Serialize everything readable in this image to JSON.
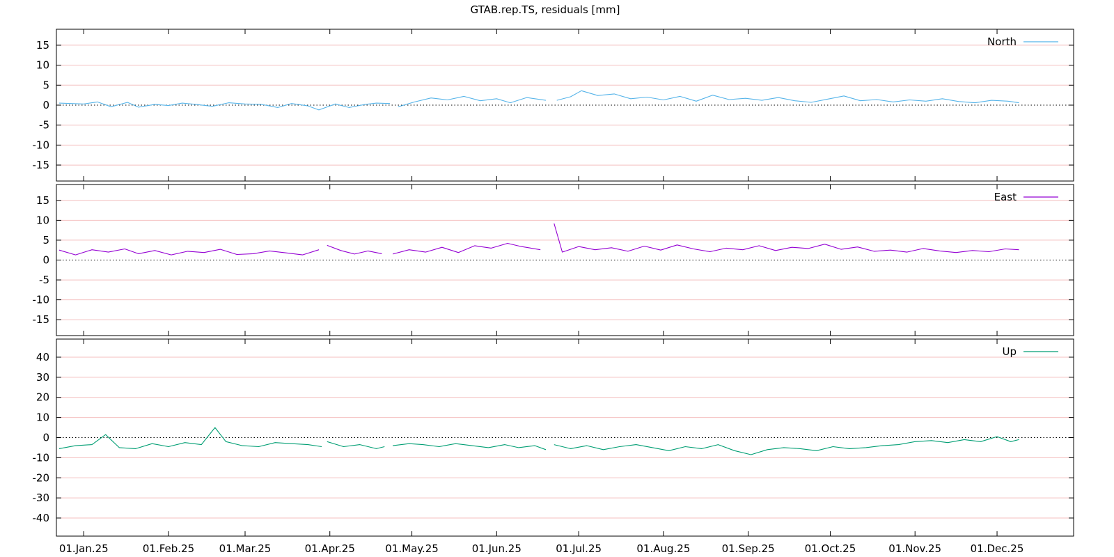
{
  "chart_data": {
    "type": "line",
    "title": "GTAB.rep.TS, residuals [mm]",
    "x_tick_labels": [
      "01.Jan.25",
      "01.Feb.25",
      "01.Mar.25",
      "01.Apr.25",
      "01.May.25",
      "01.Jun.25",
      "01.Jul.25",
      "01.Aug.25",
      "01.Sep.25",
      "01.Oct.25",
      "01.Nov.25",
      "01.Dec.25"
    ],
    "x_ticks": [
      "2025-01-01",
      "2025-02-01",
      "2025-03-01",
      "2025-04-01",
      "2025-05-01",
      "2025-06-01",
      "2025-07-01",
      "2025-08-01",
      "2025-09-01",
      "2025-10-01",
      "2025-11-01",
      "2025-12-01"
    ],
    "xlim": [
      "2024-12-22",
      "2025-12-29"
    ],
    "grid": true,
    "legend_position": "top-right",
    "panels": [
      {
        "name": "North",
        "color": "#56b4e9",
        "ylim": [
          -19,
          19
        ],
        "yticks": [
          -15,
          -10,
          -5,
          0,
          5,
          10,
          15
        ],
        "y_tick_labels": [
          "-15",
          "-10",
          "-5",
          "0",
          "5",
          "10",
          "15"
        ],
        "segments": [
          {
            "x": [
              "2024-12-23",
              "2025-01-01",
              "2025-01-06",
              "2025-01-11",
              "2025-01-17",
              "2025-01-21",
              "2025-01-27",
              "2025-02-01",
              "2025-02-06",
              "2025-02-11",
              "2025-02-17",
              "2025-02-23",
              "2025-03-01",
              "2025-03-07",
              "2025-03-13",
              "2025-03-18",
              "2025-03-24",
              "2025-03-28",
              "2025-04-03",
              "2025-04-08",
              "2025-04-14",
              "2025-04-18",
              "2025-04-23"
            ],
            "y": [
              0.5,
              0.3,
              0.8,
              -0.4,
              0.7,
              -0.5,
              0.2,
              -0.1,
              0.5,
              0.2,
              -0.3,
              0.6,
              0.3,
              0.2,
              -0.6,
              0.4,
              -0.2,
              -1.2,
              0.3,
              -0.6,
              0.2,
              0.5,
              0.4
            ]
          },
          {
            "x": [
              "2025-04-26",
              "2025-05-02",
              "2025-05-08",
              "2025-05-14",
              "2025-05-20",
              "2025-05-26",
              "2025-06-01",
              "2025-06-06",
              "2025-06-12",
              "2025-06-19"
            ],
            "y": [
              -0.4,
              0.8,
              1.8,
              1.3,
              2.2,
              1.1,
              1.6,
              0.6,
              1.9,
              1.2
            ]
          },
          {
            "x": [
              "2025-06-23",
              "2025-06-28",
              "2025-07-02",
              "2025-07-08",
              "2025-07-14",
              "2025-07-20",
              "2025-07-26",
              "2025-08-01",
              "2025-08-07",
              "2025-08-13",
              "2025-08-19",
              "2025-08-25",
              "2025-08-31",
              "2025-09-06",
              "2025-09-12",
              "2025-09-18",
              "2025-09-24",
              "2025-09-30",
              "2025-10-06",
              "2025-10-12",
              "2025-10-18",
              "2025-10-24",
              "2025-10-30",
              "2025-11-05",
              "2025-11-11",
              "2025-11-17",
              "2025-11-23",
              "2025-11-29",
              "2025-12-05",
              "2025-12-09"
            ],
            "y": [
              1.2,
              2.1,
              3.6,
              2.4,
              2.8,
              1.6,
              2.0,
              1.3,
              2.2,
              1.0,
              2.5,
              1.4,
              1.7,
              1.2,
              1.9,
              1.1,
              0.7,
              1.5,
              2.3,
              1.1,
              1.4,
              0.8,
              1.3,
              1.0,
              1.6,
              0.9,
              0.6,
              1.2,
              1.0,
              0.6
            ]
          }
        ]
      },
      {
        "name": "East",
        "color": "#9400d3",
        "ylim": [
          -19,
          19
        ],
        "yticks": [
          -15,
          -10,
          -5,
          0,
          5,
          10,
          15
        ],
        "y_tick_labels": [
          "-15",
          "-10",
          "-5",
          "0",
          "5",
          "10",
          "15"
        ],
        "segments": [
          {
            "x": [
              "2024-12-23",
              "2024-12-29",
              "2025-01-04",
              "2025-01-10",
              "2025-01-16",
              "2025-01-21",
              "2025-01-27",
              "2025-02-02",
              "2025-02-08",
              "2025-02-14",
              "2025-02-20",
              "2025-02-26",
              "2025-03-04",
              "2025-03-10",
              "2025-03-16",
              "2025-03-22",
              "2025-03-28"
            ],
            "y": [
              2.5,
              1.3,
              2.6,
              2.0,
              2.8,
              1.6,
              2.4,
              1.3,
              2.2,
              1.9,
              2.7,
              1.4,
              1.6,
              2.3,
              1.8,
              1.3,
              2.6
            ]
          },
          {
            "x": [
              "2025-03-31",
              "2025-04-05",
              "2025-04-10",
              "2025-04-15",
              "2025-04-20"
            ],
            "y": [
              3.7,
              2.4,
              1.5,
              2.3,
              1.6
            ]
          },
          {
            "x": [
              "2025-04-24",
              "2025-04-30",
              "2025-05-06",
              "2025-05-12",
              "2025-05-18",
              "2025-05-24",
              "2025-05-30",
              "2025-06-05",
              "2025-06-10",
              "2025-06-17"
            ],
            "y": [
              1.5,
              2.6,
              2.0,
              3.2,
              1.9,
              3.6,
              3.0,
              4.2,
              3.4,
              2.6
            ]
          },
          {
            "x": [
              "2025-06-22",
              "2025-06-25",
              "2025-07-01",
              "2025-07-07",
              "2025-07-13",
              "2025-07-19",
              "2025-07-25",
              "2025-07-31",
              "2025-08-06",
              "2025-08-12",
              "2025-08-18",
              "2025-08-24",
              "2025-08-30",
              "2025-09-05",
              "2025-09-11",
              "2025-09-17",
              "2025-09-23",
              "2025-09-29",
              "2025-10-05",
              "2025-10-11",
              "2025-10-17",
              "2025-10-23",
              "2025-10-29",
              "2025-11-04",
              "2025-11-10",
              "2025-11-16",
              "2025-11-22",
              "2025-11-28",
              "2025-12-04",
              "2025-12-09"
            ],
            "y": [
              9.2,
              2.0,
              3.4,
              2.6,
              3.1,
              2.2,
              3.5,
              2.5,
              3.8,
              2.8,
              2.1,
              3.0,
              2.6,
              3.6,
              2.4,
              3.2,
              2.9,
              4.0,
              2.7,
              3.3,
              2.2,
              2.5,
              2.0,
              2.9,
              2.3,
              1.9,
              2.4,
              2.1,
              2.8,
              2.6
            ]
          }
        ]
      },
      {
        "name": "Up",
        "color": "#009e73",
        "ylim": [
          -49,
          49
        ],
        "yticks": [
          -40,
          -30,
          -20,
          -10,
          0,
          10,
          20,
          30,
          40
        ],
        "y_tick_labels": [
          "-40",
          "-30",
          "-20",
          "-10",
          "0",
          "10",
          "20",
          "30",
          "40"
        ],
        "segments": [
          {
            "x": [
              "2024-12-23",
              "2024-12-29",
              "2025-01-04",
              "2025-01-09",
              "2025-01-14",
              "2025-01-20",
              "2025-01-26",
              "2025-02-01",
              "2025-02-07",
              "2025-02-13",
              "2025-02-18",
              "2025-02-22",
              "2025-02-28",
              "2025-03-06",
              "2025-03-12",
              "2025-03-18",
              "2025-03-24",
              "2025-03-29"
            ],
            "y": [
              -5.5,
              -4.0,
              -3.5,
              1.5,
              -5.0,
              -5.5,
              -3.0,
              -4.5,
              -2.5,
              -3.5,
              5.0,
              -2.0,
              -4.0,
              -4.5,
              -2.5,
              -3.0,
              -3.5,
              -4.5
            ]
          },
          {
            "x": [
              "2025-03-31",
              "2025-04-06",
              "2025-04-12",
              "2025-04-18",
              "2025-04-21"
            ],
            "y": [
              -2.0,
              -4.5,
              -3.5,
              -5.5,
              -4.5
            ]
          },
          {
            "x": [
              "2025-04-24",
              "2025-04-30",
              "2025-05-05",
              "2025-05-11",
              "2025-05-17",
              "2025-05-23",
              "2025-05-29",
              "2025-06-04",
              "2025-06-09",
              "2025-06-15",
              "2025-06-19"
            ],
            "y": [
              -4.0,
              -3.0,
              -3.5,
              -4.5,
              -3.0,
              -4.0,
              -5.0,
              -3.5,
              -5.0,
              -4.0,
              -6.0
            ]
          },
          {
            "x": [
              "2025-06-22",
              "2025-06-28",
              "2025-07-04",
              "2025-07-10",
              "2025-07-16",
              "2025-07-22",
              "2025-07-28",
              "2025-08-03",
              "2025-08-09",
              "2025-08-15",
              "2025-08-21",
              "2025-08-27",
              "2025-09-02",
              "2025-09-08",
              "2025-09-14",
              "2025-09-20",
              "2025-09-26",
              "2025-10-02",
              "2025-10-08",
              "2025-10-14",
              "2025-10-20",
              "2025-10-26",
              "2025-11-01",
              "2025-11-07",
              "2025-11-13",
              "2025-11-19",
              "2025-11-25",
              "2025-12-01",
              "2025-12-06",
              "2025-12-09"
            ],
            "y": [
              -3.5,
              -5.5,
              -4.0,
              -6.0,
              -4.5,
              -3.5,
              -5.0,
              -6.5,
              -4.5,
              -5.5,
              -3.5,
              -6.5,
              -8.5,
              -6.0,
              -5.0,
              -5.5,
              -6.5,
              -4.5,
              -5.5,
              -5.0,
              -4.0,
              -3.5,
              -2.0,
              -1.5,
              -2.5,
              -1.0,
              -2.0,
              0.5,
              -2.0,
              -1.0
            ]
          }
        ]
      }
    ]
  }
}
